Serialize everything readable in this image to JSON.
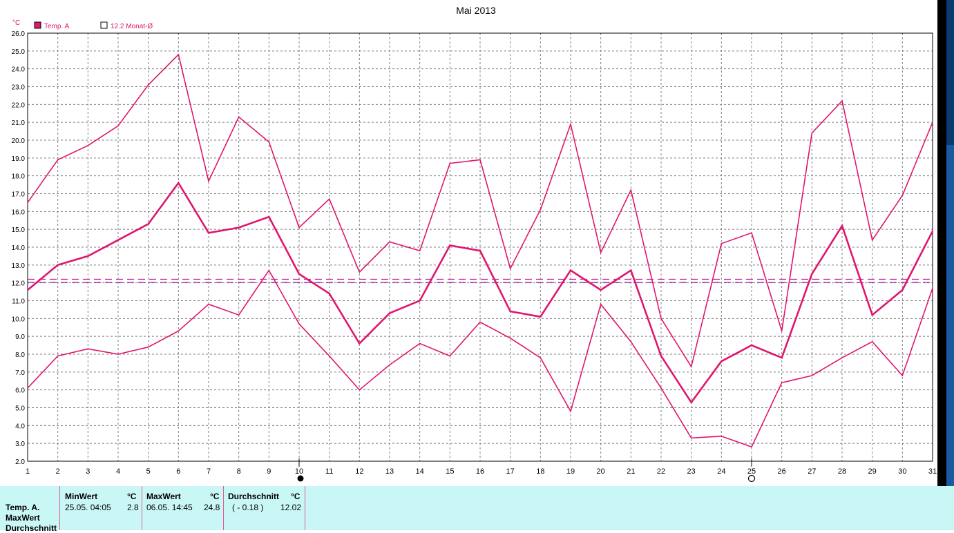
{
  "title": "Mai 2013",
  "legend": [
    {
      "label": "Temp. A.",
      "filled": true
    },
    {
      "label": "12.2 Monat-Ø",
      "filled": false
    }
  ],
  "colors": {
    "series": "#e0156e",
    "grid": "#7f7f7f",
    "avg_line_1": "#c8168a",
    "avg_line_2": "#8a2fb0",
    "panel": "#c9f7f6"
  },
  "chart_data": {
    "type": "line",
    "title": "Mai 2013",
    "ylabel": "°C",
    "xlabel": "",
    "x": [
      1,
      2,
      3,
      4,
      5,
      6,
      7,
      8,
      9,
      10,
      11,
      12,
      13,
      14,
      15,
      16,
      17,
      18,
      19,
      20,
      21,
      22,
      23,
      24,
      25,
      26,
      27,
      28,
      29,
      30,
      31
    ],
    "ylim": [
      2.0,
      26.0
    ],
    "y_ticks": [
      "2.0",
      "3.0",
      "4.0",
      "5.0",
      "6.0",
      "7.0",
      "8.0",
      "9.0",
      "10.0",
      "11.0",
      "12.0",
      "13.0",
      "14.0",
      "15.0",
      "16.0",
      "17.0",
      "18.0",
      "19.0",
      "20.0",
      "21.0",
      "22.0",
      "23.0",
      "24.0",
      "25.0",
      "26.0"
    ],
    "x_ticks": [
      "1",
      "2",
      "3",
      "4",
      "5",
      "6",
      "7",
      "8",
      "9",
      "10",
      "11",
      "12",
      "13",
      "14",
      "15",
      "16",
      "17",
      "18",
      "19",
      "20",
      "21",
      "22",
      "23",
      "24",
      "25",
      "26",
      "27",
      "28",
      "29",
      "30",
      "31"
    ],
    "grid": true,
    "legend_position": "top-left",
    "series": [
      {
        "values": [
          16.5,
          18.9,
          19.7,
          20.8,
          23.1,
          24.8,
          17.7,
          21.3,
          19.9,
          15.1,
          16.7,
          12.6,
          14.3,
          13.8,
          18.7,
          18.9,
          12.8,
          16.1,
          20.9,
          13.7,
          17.2,
          10.0,
          7.3,
          14.2,
          14.8,
          9.3,
          20.4,
          22.2,
          14.4,
          16.9,
          21.0
        ]
      },
      {
        "name": "Temp. A.",
        "values": [
          11.6,
          13.0,
          13.5,
          14.4,
          15.3,
          17.6,
          14.8,
          15.1,
          15.7,
          12.5,
          11.4,
          8.6,
          10.3,
          11.0,
          14.1,
          13.8,
          10.4,
          10.1,
          12.7,
          11.6,
          12.7,
          7.9,
          5.3,
          7.6,
          8.5,
          7.8,
          12.5,
          15.2,
          10.2,
          11.6,
          14.9
        ]
      },
      {
        "values": [
          6.1,
          7.9,
          8.3,
          8.0,
          8.4,
          9.3,
          10.8,
          10.2,
          12.7,
          9.7,
          7.9,
          6.0,
          7.4,
          8.6,
          7.9,
          9.8,
          8.9,
          7.8,
          4.8,
          10.8,
          8.7,
          6.1,
          3.3,
          3.4,
          2.8,
          6.4,
          6.8,
          7.8,
          8.7,
          6.8,
          11.7
        ]
      }
    ],
    "reference_lines": [
      12.2,
      12.02
    ],
    "markers": [
      {
        "x": 10,
        "symbol": "filled-circle"
      },
      {
        "x": 25.0,
        "symbol": "open-circle"
      }
    ]
  },
  "stats": {
    "row_labels": [
      "Temp. A.",
      "MaxWert",
      "Durchschnitt"
    ],
    "min": {
      "header": "MinWert",
      "unit": "°C",
      "time": "25.05.  04:05",
      "value": "2.8"
    },
    "max": {
      "header": "MaxWert",
      "unit": "°C",
      "time": "06.05.  14:45",
      "value": "24.8"
    },
    "avg": {
      "header": "Durchschnitt",
      "unit": "°C",
      "time": "( - 0.18 )",
      "value": "12.02"
    }
  }
}
